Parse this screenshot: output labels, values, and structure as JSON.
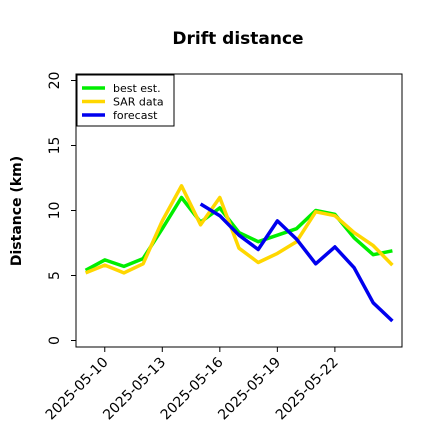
{
  "chart_data": {
    "type": "line",
    "title": "Drift distance",
    "xlabel": "",
    "ylabel": "Distance (km)",
    "ylim": [
      -0.5,
      20.5
    ],
    "yticks": [
      0,
      5,
      10,
      15,
      20
    ],
    "xlim": [
      "2025-05-08T12:00",
      "2025-05-25T12:00"
    ],
    "xticks": [
      "2025-05-10",
      "2025-05-13",
      "2025-05-16",
      "2025-05-19",
      "2025-05-22"
    ],
    "grid": false,
    "legend": "top-left",
    "series": [
      {
        "name": "best est.",
        "color": "#00ee00",
        "x": [
          "2025-05-09",
          "2025-05-10",
          "2025-05-11",
          "2025-05-12",
          "2025-05-13",
          "2025-05-14",
          "2025-05-15",
          "2025-05-16",
          "2025-05-17",
          "2025-05-18",
          "2025-05-19",
          "2025-05-20",
          "2025-05-21",
          "2025-05-22",
          "2025-05-23",
          "2025-05-24",
          "2025-05-25"
        ],
        "values": [
          5.4,
          6.2,
          5.7,
          6.3,
          8.6,
          11.0,
          9.1,
          10.2,
          8.3,
          7.6,
          8.1,
          8.6,
          10.0,
          9.7,
          7.9,
          6.6,
          6.9
        ]
      },
      {
        "name": "SAR data",
        "color": "#ffd700",
        "x": [
          "2025-05-09",
          "2025-05-10",
          "2025-05-11",
          "2025-05-12",
          "2025-05-13",
          "2025-05-14",
          "2025-05-15",
          "2025-05-16",
          "2025-05-17",
          "2025-05-18",
          "2025-05-19",
          "2025-05-20",
          "2025-05-21",
          "2025-05-22",
          "2025-05-23",
          "2025-05-24",
          "2025-05-25"
        ],
        "values": [
          5.2,
          5.8,
          5.2,
          5.9,
          9.2,
          11.9,
          8.9,
          11.0,
          7.1,
          6.0,
          6.7,
          7.6,
          9.9,
          9.6,
          8.3,
          7.3,
          5.8
        ]
      },
      {
        "name": "forecast",
        "color": "#0000ee",
        "x": [
          "2025-05-15",
          "2025-05-16",
          "2025-05-17",
          "2025-05-18",
          "2025-05-19",
          "2025-05-20",
          "2025-05-21",
          "2025-05-22",
          "2025-05-23",
          "2025-05-24",
          "2025-05-25"
        ],
        "values": [
          10.5,
          9.6,
          8.1,
          7.0,
          9.2,
          7.8,
          5.9,
          7.2,
          5.6,
          2.9,
          1.5
        ]
      }
    ]
  }
}
